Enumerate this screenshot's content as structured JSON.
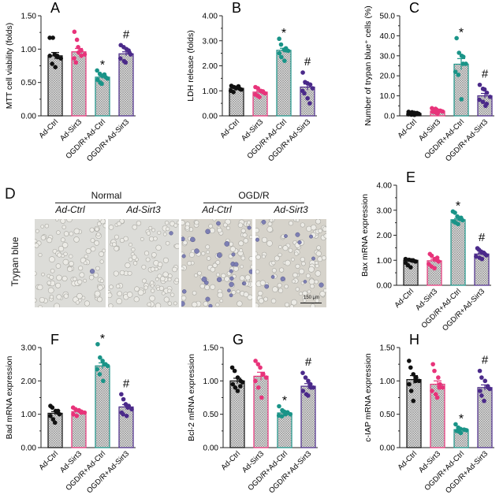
{
  "groups": [
    "Ad-Ctrl",
    "Ad-Sirt3",
    "OGD/R+Ad-Ctrl",
    "OGD/R+Ad-Sirt3"
  ],
  "colors": {
    "Ad-Ctrl": "#111111",
    "Ad-Sirt3": "#e8337a",
    "OGD/R+Ad-Ctrl": "#1a9488",
    "OGD/R+Ad-Sirt3": "#4b2a8a"
  },
  "chart_data": [
    {
      "panel": "A",
      "type": "bar",
      "ylabel": "MTT cell viability (folds)",
      "ylim": [
        0,
        1.5
      ],
      "yticks": [
        "0.00",
        "0.50",
        "1.00",
        "1.50"
      ],
      "means": [
        0.9,
        0.96,
        0.58,
        0.93
      ],
      "sem": [
        0.05,
        0.05,
        0.02,
        0.03
      ],
      "points": [
        [
          1.17,
          1.17,
          0.92,
          0.88,
          0.86,
          0.9,
          0.78,
          0.73,
          0.9
        ],
        [
          1.26,
          1.14,
          1.03,
          0.98,
          0.92,
          0.86,
          0.8,
          0.95,
          0.9
        ],
        [
          0.68,
          0.63,
          0.6,
          0.58,
          0.56,
          0.54,
          0.5,
          0.48,
          0.62
        ],
        [
          1.06,
          1.03,
          1.0,
          0.98,
          0.92,
          0.86,
          0.82,
          0.8,
          0.95
        ]
      ],
      "annotations": [
        "",
        "",
        "*",
        "#"
      ]
    },
    {
      "panel": "B",
      "type": "bar",
      "ylabel": "LDH release (folds)",
      "ylim": [
        0,
        4
      ],
      "yticks": [
        "0.00",
        "1.00",
        "2.00",
        "3.00",
        "4.00"
      ],
      "means": [
        1.1,
        0.95,
        2.62,
        1.15
      ],
      "sem": [
        0.03,
        0.05,
        0.08,
        0.12
      ],
      "points": [
        [
          1.2,
          1.15,
          1.1,
          1.08,
          1.05,
          1.0,
          0.95,
          1.12,
          1.18
        ],
        [
          1.15,
          1.1,
          1.0,
          0.95,
          0.9,
          0.85,
          0.8,
          0.75,
          0.98
        ],
        [
          3.08,
          2.85,
          2.65,
          2.62,
          2.6,
          2.5,
          2.35,
          2.2,
          2.7
        ],
        [
          1.73,
          1.35,
          1.3,
          1.25,
          1.1,
          1.0,
          0.9,
          0.7,
          0.5
        ]
      ],
      "annotations": [
        "",
        "",
        "*",
        "#"
      ]
    },
    {
      "panel": "C",
      "type": "bar",
      "ylabel": "Number of trypan blue⁺ cells (%)",
      "ylim": [
        0,
        50
      ],
      "yticks": [
        "0.0",
        "10.0",
        "20.0",
        "30.0",
        "40.0",
        "50.0"
      ],
      "means": [
        1.2,
        2.4,
        25.8,
        10.0
      ],
      "sem": [
        0.2,
        0.3,
        2.8,
        1.2
      ],
      "points": [
        [
          2.0,
          1.8,
          1.5,
          1.2,
          1.0,
          0.8,
          0.6,
          0.5,
          1.4
        ],
        [
          3.8,
          3.5,
          3.0,
          2.6,
          2.2,
          2.0,
          1.6,
          1.2,
          2.5
        ],
        [
          38.8,
          31.5,
          30.0,
          29.5,
          26.0,
          22.0,
          20.5,
          8.3,
          26.0
        ],
        [
          15.5,
          13.5,
          13.2,
          11.5,
          9.5,
          8.0,
          7.0,
          5.0,
          6.0
        ]
      ],
      "annotations": [
        "",
        "",
        "*",
        "#"
      ]
    },
    {
      "panel": "E",
      "type": "bar",
      "ylabel": "Bax mRNA expression",
      "ylim": [
        0,
        4
      ],
      "yticks": [
        "0.00",
        "1.00",
        "2.00",
        "3.00",
        "4.00"
      ],
      "means": [
        1.0,
        0.98,
        2.62,
        1.25
      ],
      "sem": [
        0.03,
        0.06,
        0.05,
        0.04
      ],
      "points": [
        [
          1.05,
          1.02,
          1.0,
          0.98,
          0.95,
          0.9,
          0.8,
          0.72,
          1.0
        ],
        [
          1.25,
          1.18,
          1.05,
          1.0,
          0.95,
          0.85,
          0.75,
          0.68,
          1.1
        ],
        [
          2.95,
          2.9,
          2.75,
          2.7,
          2.6,
          2.55,
          2.5,
          2.45,
          2.65
        ],
        [
          1.48,
          1.42,
          1.35,
          1.3,
          1.2,
          1.15,
          1.1,
          1.05,
          1.25
        ]
      ],
      "annotations": [
        "",
        "",
        "*",
        "#"
      ]
    },
    {
      "panel": "F",
      "type": "bar",
      "ylabel": "Bad mRNA expression",
      "ylim": [
        0,
        3
      ],
      "yticks": [
        "0.00",
        "1.00",
        "2.00",
        "3.00"
      ],
      "means": [
        1.03,
        1.08,
        2.45,
        1.22
      ],
      "sem": [
        0.05,
        0.03,
        0.09,
        0.07
      ],
      "points": [
        [
          1.25,
          1.2,
          1.1,
          1.05,
          1.0,
          0.95,
          0.85,
          0.75,
          1.1
        ],
        [
          1.2,
          1.15,
          1.1,
          1.08,
          1.05,
          1.0,
          0.95,
          1.12,
          1.05
        ],
        [
          3.1,
          2.7,
          2.6,
          2.5,
          2.45,
          2.35,
          2.2,
          2.0,
          2.5
        ],
        [
          1.6,
          1.45,
          1.3,
          1.25,
          1.15,
          1.05,
          1.0,
          0.95,
          1.2
        ]
      ],
      "annotations": [
        "",
        "",
        "*",
        "#"
      ]
    },
    {
      "panel": "G",
      "type": "bar",
      "ylabel": "Bcl-2 mRNA expression",
      "ylim": [
        0,
        1.5
      ],
      "yticks": [
        "0.00",
        "0.50",
        "1.00",
        "1.50"
      ],
      "means": [
        1.0,
        1.07,
        0.52,
        0.92
      ],
      "sem": [
        0.04,
        0.06,
        0.02,
        0.04
      ],
      "points": [
        [
          1.2,
          1.15,
          1.05,
          1.0,
          0.98,
          0.95,
          0.9,
          0.85,
          0.92
        ],
        [
          1.3,
          1.25,
          1.2,
          1.1,
          1.05,
          1.0,
          0.9,
          0.75,
          1.1
        ],
        [
          0.62,
          0.56,
          0.54,
          0.52,
          0.5,
          0.48,
          0.47,
          0.5,
          0.53
        ],
        [
          1.12,
          1.05,
          1.0,
          0.95,
          0.9,
          0.85,
          0.8,
          0.78,
          0.9
        ]
      ],
      "annotations": [
        "",
        "",
        "*",
        "#"
      ]
    },
    {
      "panel": "H",
      "type": "bar",
      "ylabel": "c-IAP mRNA expression",
      "ylim": [
        0,
        1.5
      ],
      "yticks": [
        "0.00",
        "0.50",
        "1.00",
        "1.50"
      ],
      "means": [
        1.02,
        0.95,
        0.27,
        0.9
      ],
      "sem": [
        0.06,
        0.05,
        0.01,
        0.04
      ],
      "points": [
        [
          1.3,
          1.2,
          1.1,
          1.05,
          1.0,
          0.95,
          0.85,
          0.7,
          1.0
        ],
        [
          1.25,
          1.15,
          1.05,
          0.95,
          0.9,
          0.85,
          0.8,
          0.75,
          0.9
        ],
        [
          0.35,
          0.3,
          0.28,
          0.27,
          0.26,
          0.25,
          0.24,
          0.22,
          0.27
        ],
        [
          1.15,
          1.05,
          1.0,
          0.92,
          0.88,
          0.85,
          0.78,
          0.7,
          0.9
        ]
      ],
      "annotations": [
        "",
        "",
        "*",
        "#"
      ]
    }
  ],
  "panel_d": {
    "letter": "D",
    "row_label": "Trypan blue",
    "conditions": [
      "Normal",
      "OGD/R"
    ],
    "columns": [
      "Ad-Ctrl",
      "Ad-Sirt3",
      "Ad-Ctrl",
      "Ad-Sirt3"
    ],
    "scale_bar": "150 μm"
  }
}
